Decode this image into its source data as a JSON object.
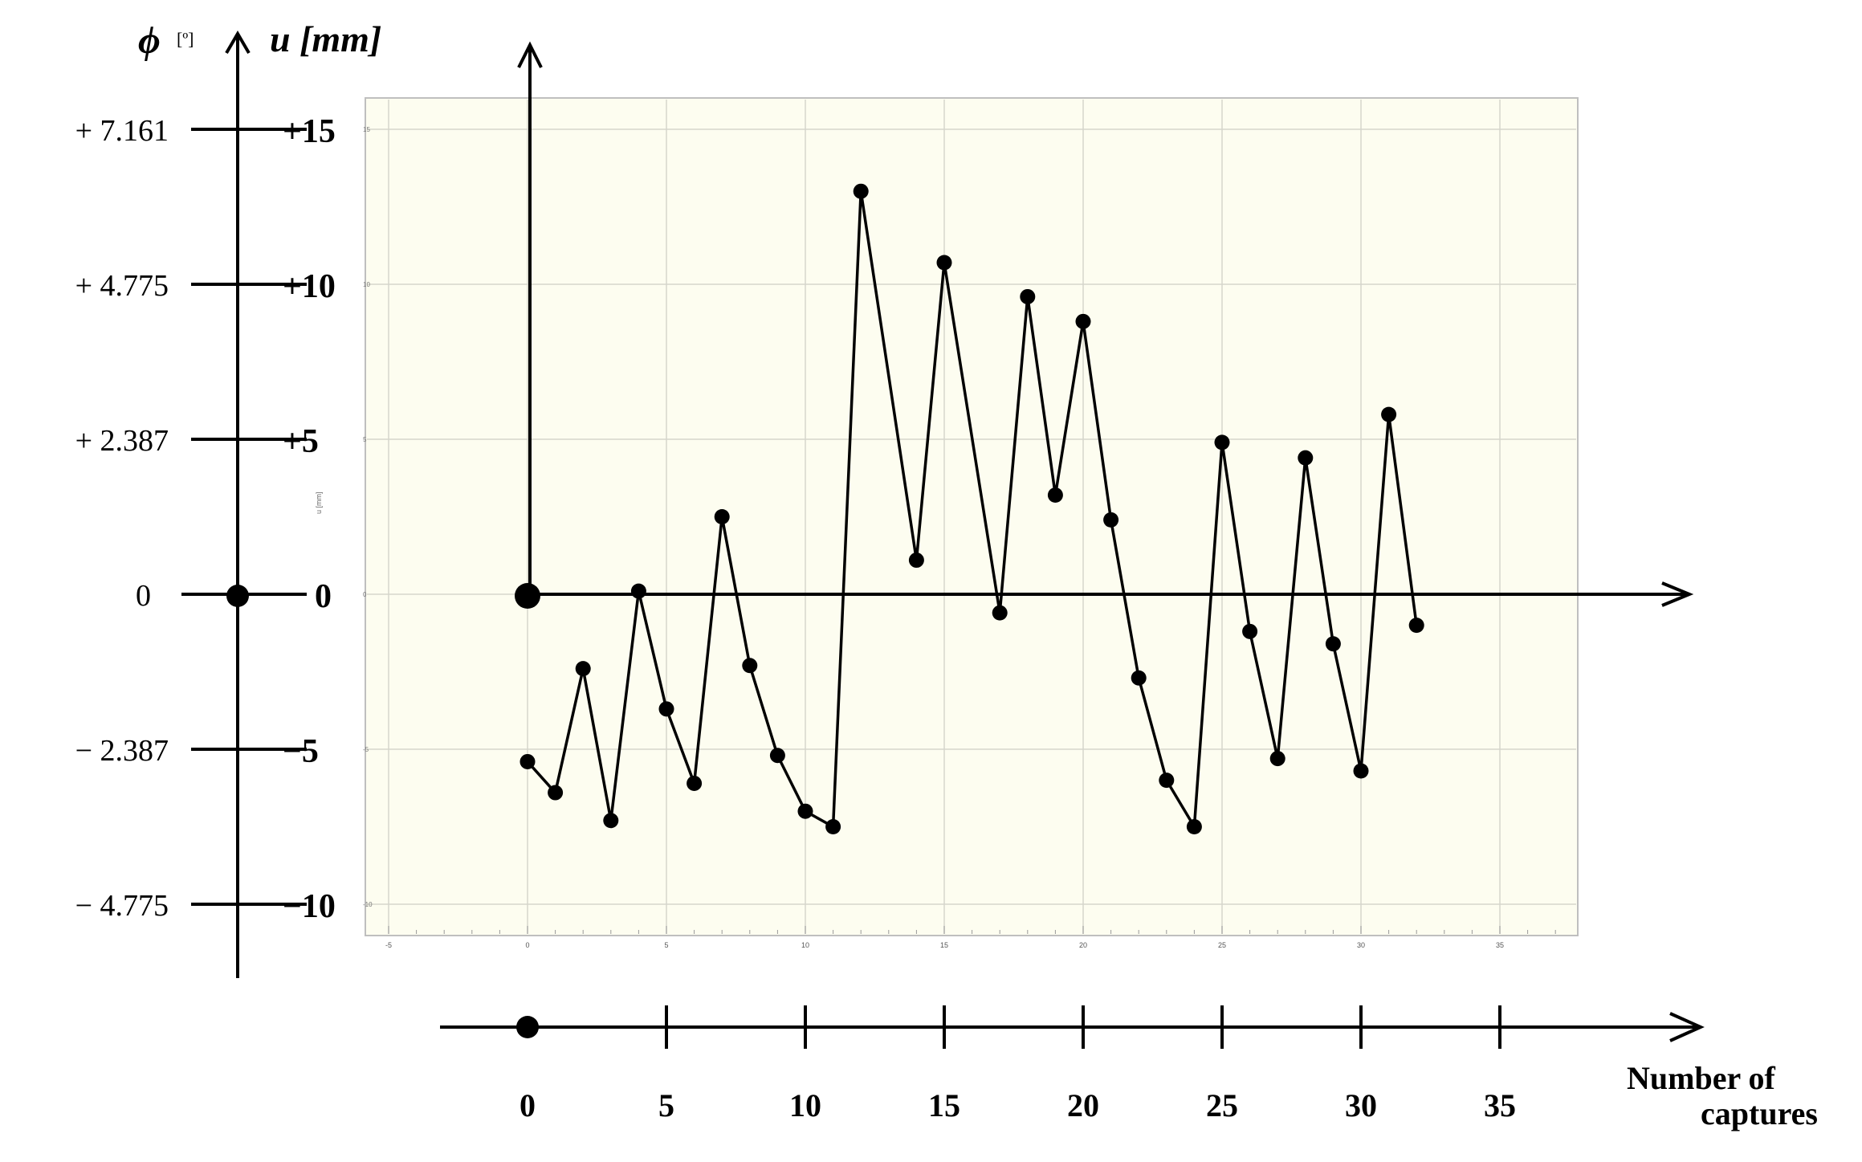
{
  "chart_data": {
    "type": "line",
    "left_axis": {
      "phi_symbol": "ϕ",
      "phi_unit": "[º]",
      "u_label": "u [mm]",
      "ticks": [
        {
          "u": 15,
          "u_label": "+15",
          "phi_label": "+  7.161"
        },
        {
          "u": 10,
          "u_label": "+10",
          "phi_label": "+  4.775"
        },
        {
          "u": 5,
          "u_label": "+5",
          "phi_label": "+  2.387"
        },
        {
          "u": 0,
          "u_label": "0",
          "phi_label": "0"
        },
        {
          "u": -5,
          "u_label": "−5",
          "phi_label": "−  2.387"
        },
        {
          "u": -10,
          "u_label": "−10",
          "phi_label": "−  4.775"
        }
      ]
    },
    "x_axis": {
      "label_line1": "Number of",
      "label_line2": "captures",
      "ticks": [
        0,
        5,
        10,
        15,
        20,
        25,
        30,
        35
      ],
      "inner_ticks": [
        "-5",
        "0",
        "5",
        "10",
        "15",
        "20",
        "25",
        "30",
        "35"
      ]
    },
    "inner_plot": {
      "xlim": [
        -5,
        38
      ],
      "ylim": [
        -11,
        16
      ],
      "y_inner_ticks": [
        "15",
        "10",
        "5",
        "0",
        "-5",
        "-10"
      ],
      "y_inner_label": "u [mm]",
      "grid": true,
      "background": "#fdfdf0"
    },
    "series": [
      {
        "x": [
          0,
          1,
          2,
          3,
          4,
          5,
          6,
          7,
          8,
          9,
          10,
          11,
          12,
          14,
          15,
          17,
          18,
          19,
          20,
          21,
          22,
          23,
          24,
          25,
          26,
          27,
          28,
          29,
          30,
          31,
          32
        ],
        "y": [
          -5.4,
          -6.4,
          -2.4,
          -7.3,
          0.1,
          -3.7,
          -6.1,
          2.5,
          -2.3,
          -5.2,
          -7.0,
          -7.5,
          13.0,
          1.1,
          10.7,
          -0.6,
          9.6,
          3.2,
          8.8,
          2.4,
          -2.7,
          -6.0,
          -7.5,
          4.9,
          -1.2,
          -5.3,
          4.4,
          -1.6,
          -5.7,
          5.8,
          -1.0
        ]
      }
    ],
    "origin_marker": {
      "x": 0,
      "y": 0
    }
  }
}
